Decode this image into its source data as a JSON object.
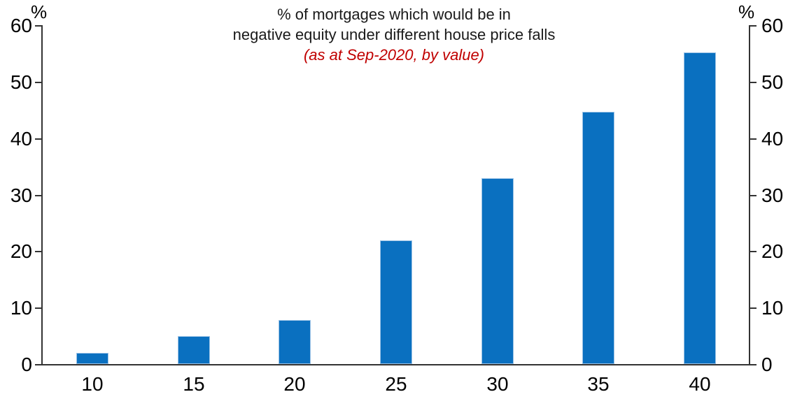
{
  "chart_data": {
    "type": "bar",
    "title_line1": "% of mortgages which would be in",
    "title_line2": "negative equity under different house price falls",
    "subtitle": "(as at Sep-2020, by value)",
    "subtitle_color": "#c00000",
    "axis_unit_left": "%",
    "axis_unit_right": "%",
    "categories": [
      "10",
      "15",
      "20",
      "25",
      "30",
      "35",
      "40"
    ],
    "values": [
      2,
      5,
      7.8,
      21.9,
      32.9,
      44.6,
      55.2
    ],
    "xlabel": "",
    "ylabel": "%",
    "ylim": [
      0,
      60
    ],
    "yticks": [
      0,
      10,
      20,
      30,
      40,
      50,
      60
    ],
    "grid": "off",
    "legend": "none",
    "bar_color": "#0a70c0",
    "bar_border_color": "#9dc3e6",
    "axis_color": "#333333"
  }
}
